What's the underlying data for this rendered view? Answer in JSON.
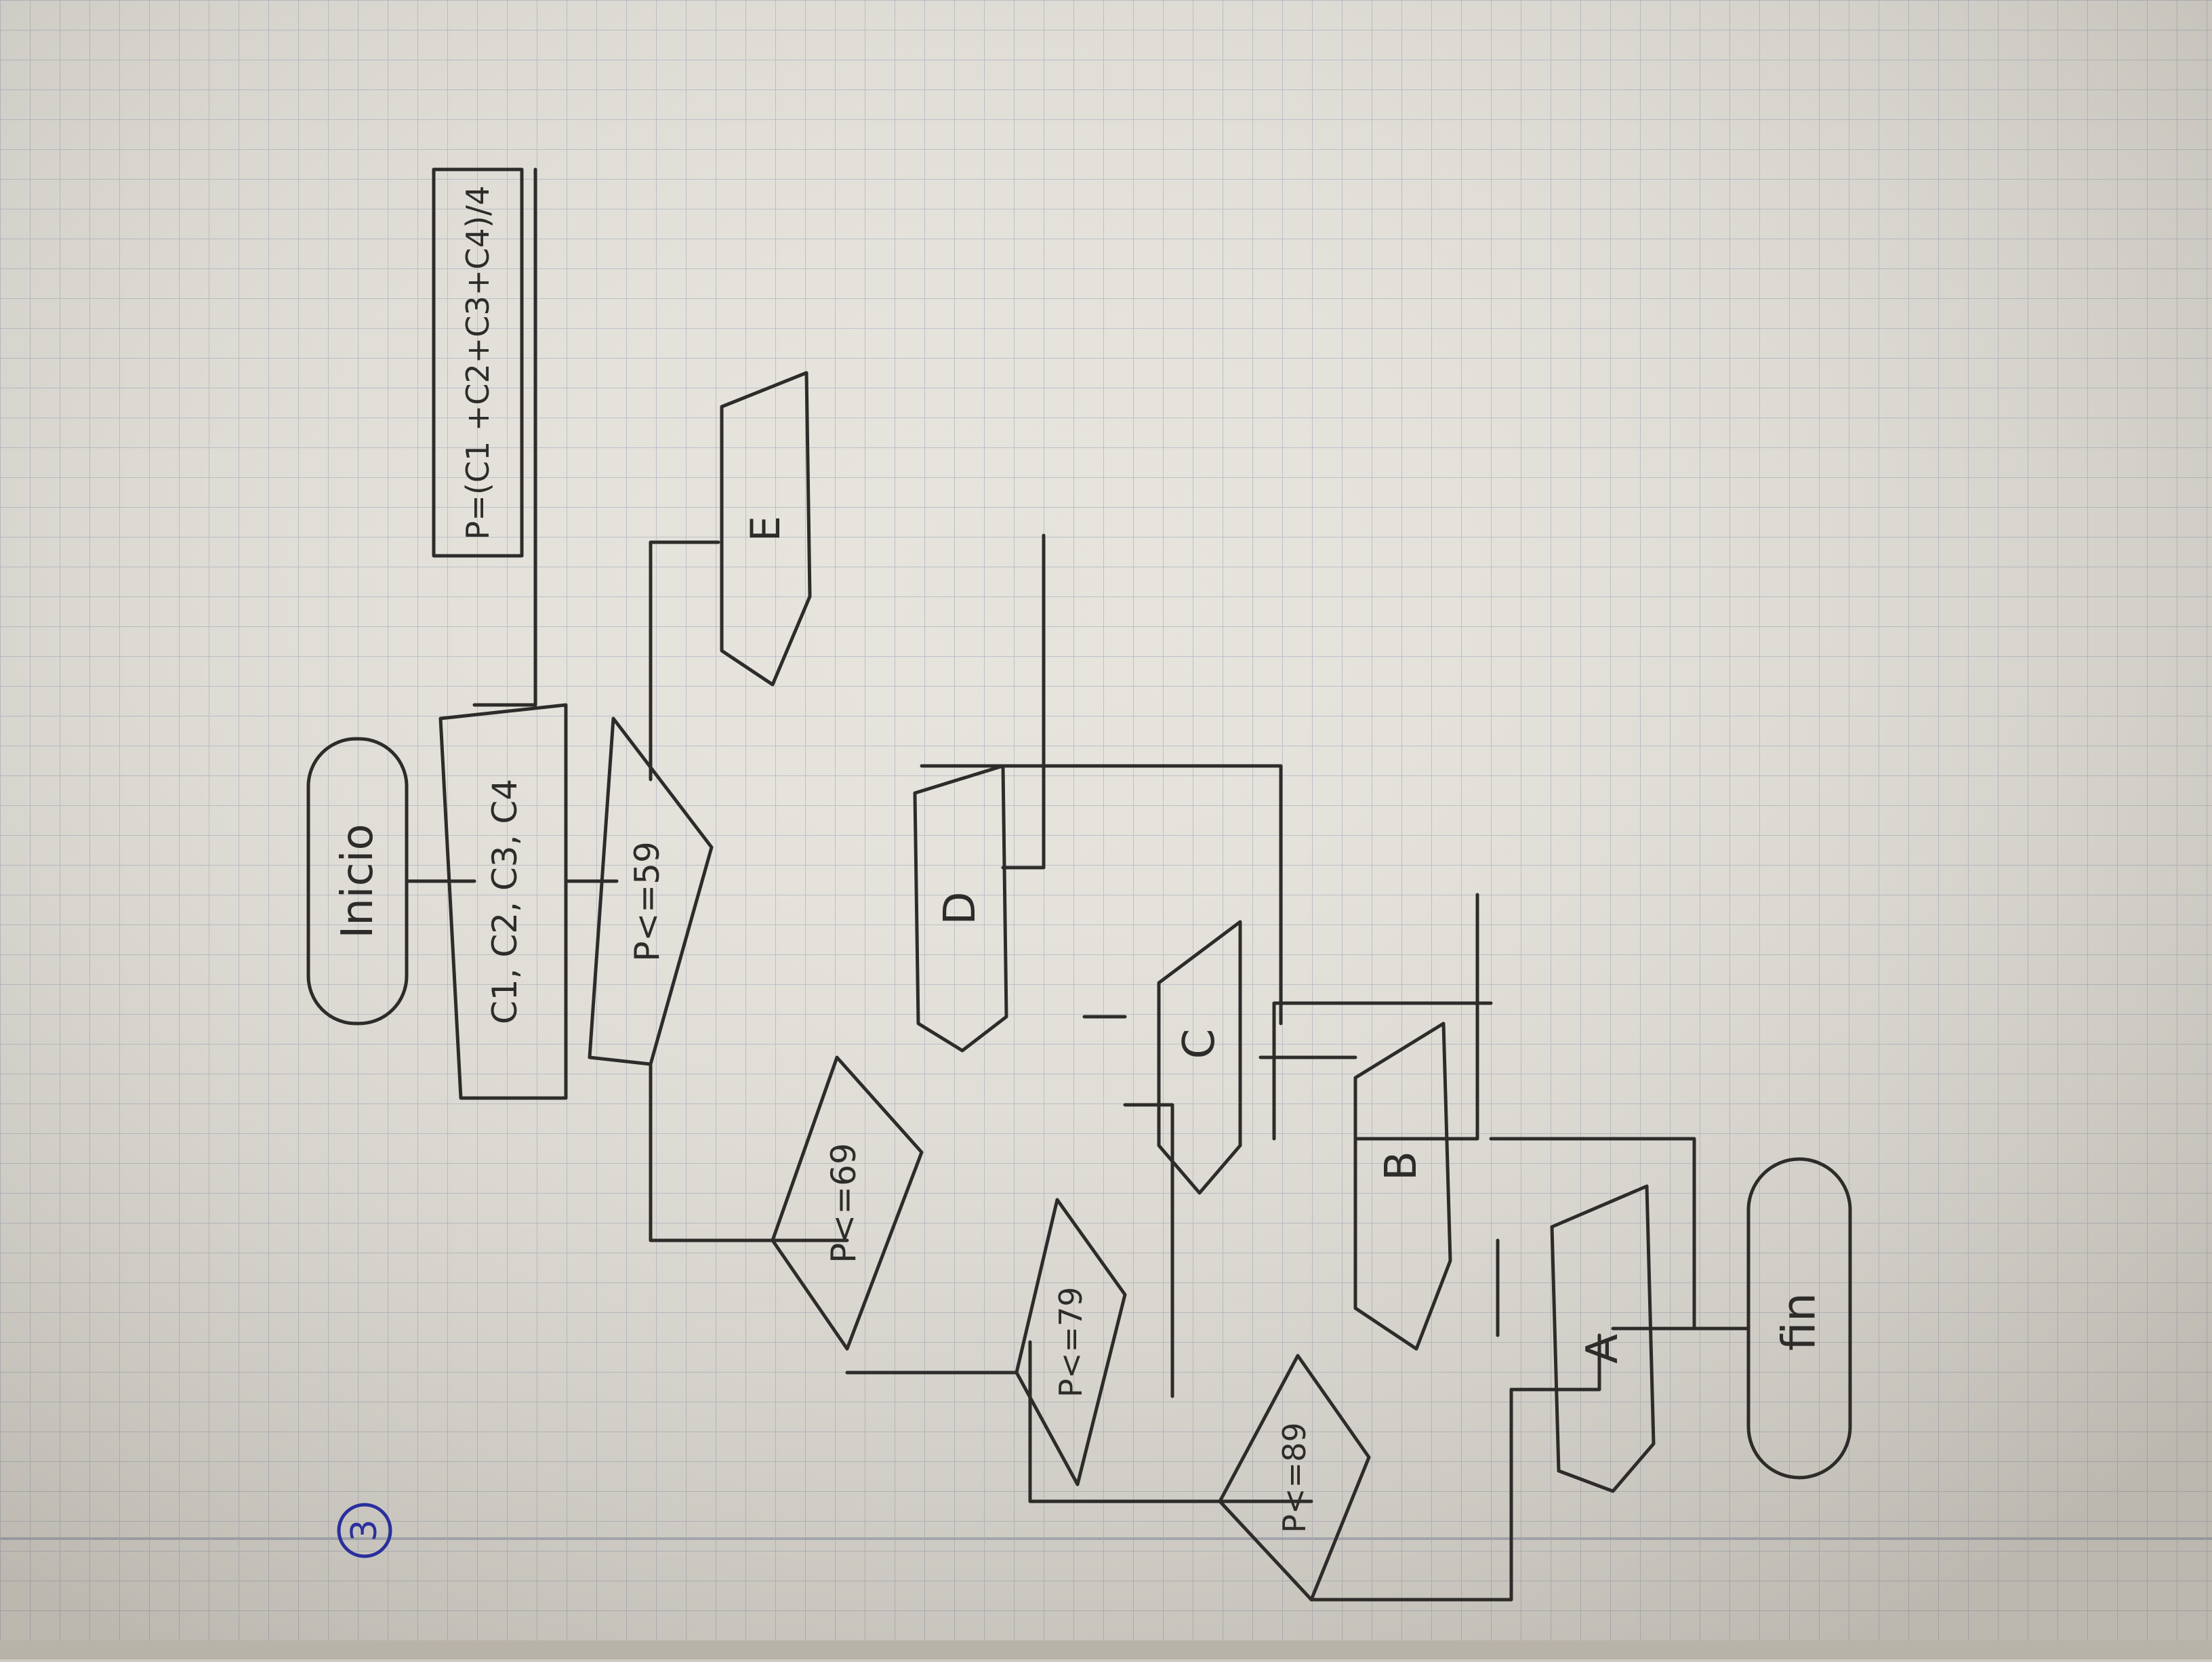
{
  "page": {
    "number": "3",
    "colors": {
      "paper": "#e6e3dc",
      "grid": "#b9bec6",
      "ink": "#2e2c2a",
      "number_ink": "#2a2f9c",
      "margin_line": "#aab0bb"
    }
  },
  "flowchart": {
    "start": "Inicio",
    "input": "C1, C2, C3, C4",
    "process": "P=(C1 +C2+C3+C4)/4",
    "decisions": [
      "P<=59",
      "P<=69",
      "P<=79",
      "P<=89"
    ],
    "outputs": {
      "a": "A",
      "b": "B",
      "c": "C",
      "d": "D",
      "e": "E"
    },
    "end": "fin"
  }
}
